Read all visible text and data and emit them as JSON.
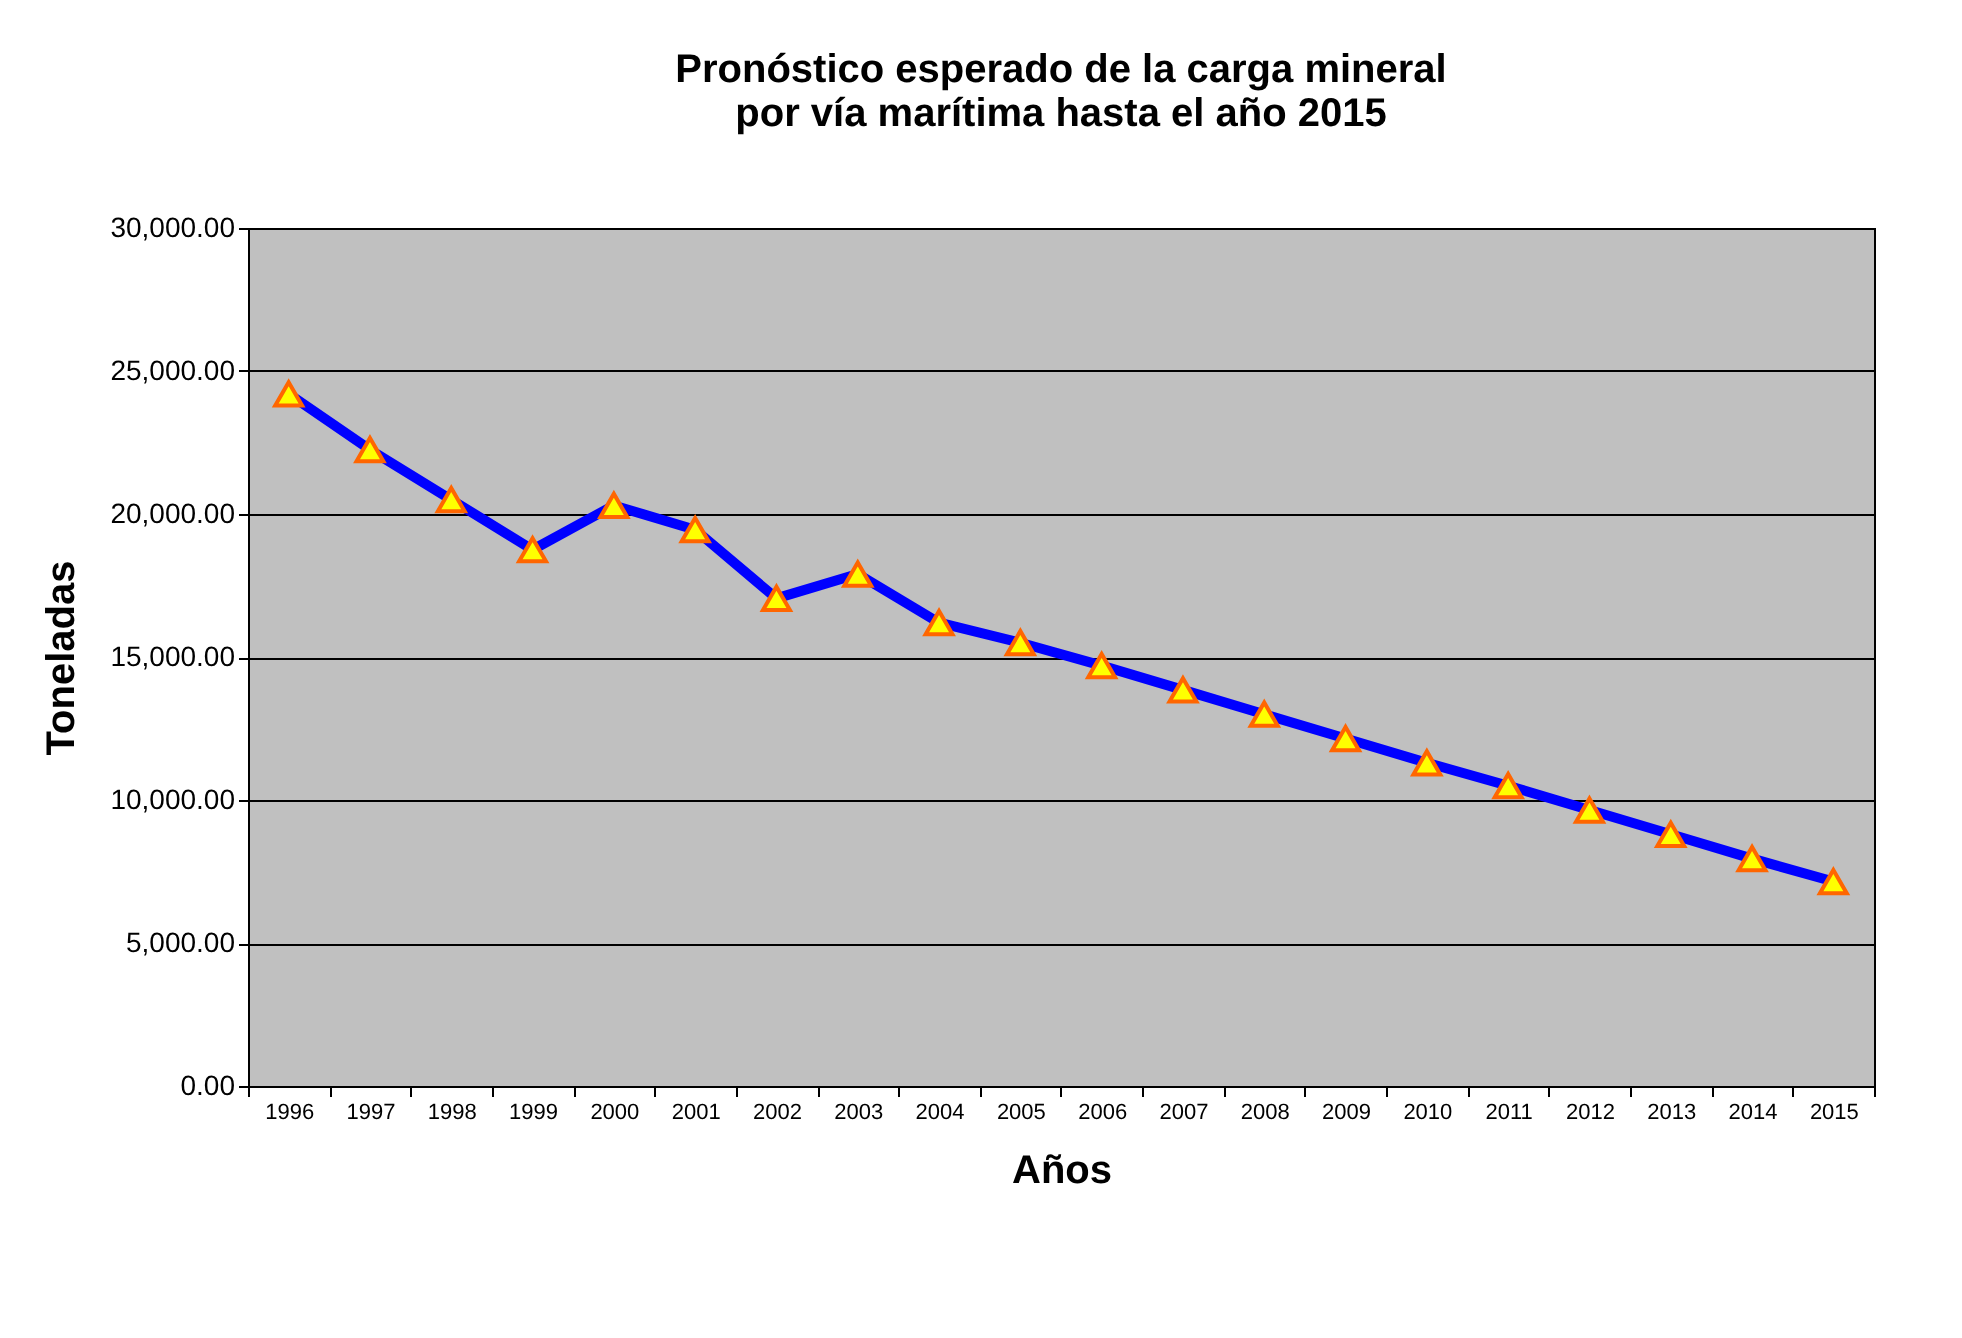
{
  "chart_data": {
    "type": "line",
    "title": "Pronóstico esperado de la carga mineral\npor vía marítima hasta el año 2015",
    "xlabel": "Años",
    "ylabel": "Toneladas",
    "categories": [
      "1996",
      "1997",
      "1998",
      "1999",
      "2000",
      "2001",
      "2002",
      "2003",
      "2004",
      "2005",
      "2006",
      "2007",
      "2008",
      "2009",
      "2010",
      "2011",
      "2012",
      "2013",
      "2014",
      "2015"
    ],
    "series": [
      {
        "color": "#0000ff",
        "values": [
          24200,
          22250,
          20500,
          18750,
          20300,
          19450,
          17050,
          17900,
          16200,
          15500,
          14700,
          13850,
          13000,
          12150,
          11300,
          10500,
          9650,
          8800,
          7950,
          7150
        ]
      }
    ],
    "ylim": [
      0,
      30000
    ],
    "yticks": [
      {
        "value": 0,
        "label": "0.00"
      },
      {
        "value": 5000,
        "label": "5,000.00"
      },
      {
        "value": 10000,
        "label": "10,000.00"
      },
      {
        "value": 15000,
        "label": "15,000.00"
      },
      {
        "value": 20000,
        "label": "20,000.00"
      },
      {
        "value": 25000,
        "label": "25,000.00"
      },
      {
        "value": 30000,
        "label": "30,000.00"
      }
    ],
    "grid": "y",
    "marker": "triangle",
    "line_style": "solid"
  }
}
